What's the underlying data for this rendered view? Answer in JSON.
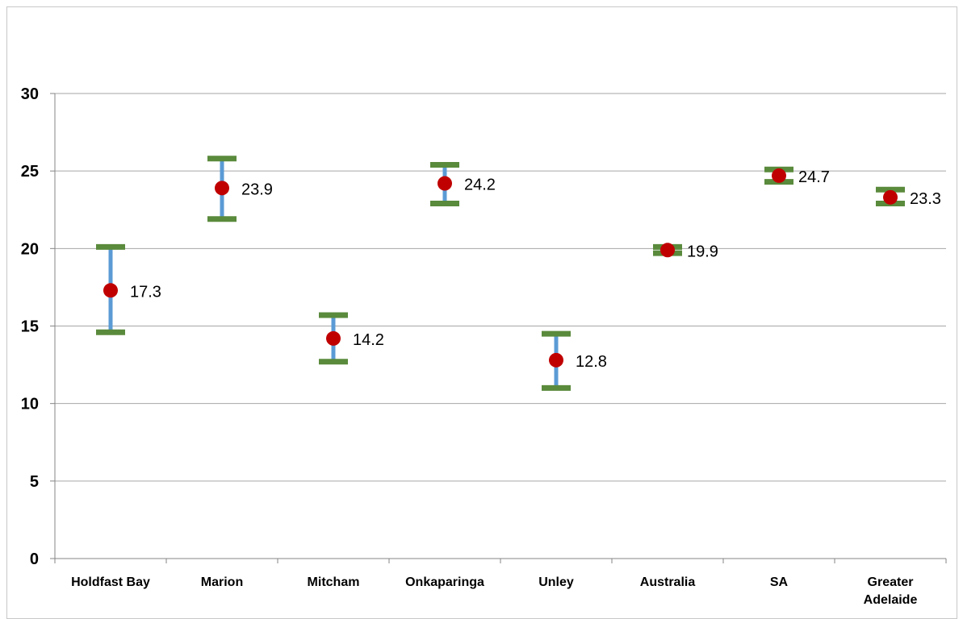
{
  "chart_data": {
    "type": "scatter",
    "categories": [
      "Holdfast Bay",
      "Marion",
      "Mitcham",
      "Onkaparinga",
      "Unley",
      "Australia",
      "SA",
      "Greater Adelaide"
    ],
    "category_lines": [
      [
        "Holdfast Bay"
      ],
      [
        "Marion"
      ],
      [
        "Mitcham"
      ],
      [
        "Onkaparinga"
      ],
      [
        "Unley"
      ],
      [
        "Australia"
      ],
      [
        "SA"
      ],
      [
        "Greater",
        "Adelaide"
      ]
    ],
    "values": [
      17.3,
      23.9,
      14.2,
      24.2,
      12.8,
      19.9,
      24.7,
      23.3
    ],
    "value_labels": [
      "17.3",
      "23.9",
      "14.2",
      "24.2",
      "12.8",
      "19.9",
      "24.7",
      "23.3"
    ],
    "ci_low": [
      14.6,
      21.9,
      12.7,
      22.9,
      11.0,
      19.7,
      24.3,
      22.9
    ],
    "ci_high": [
      20.1,
      25.8,
      15.7,
      25.4,
      14.5,
      20.1,
      25.1,
      23.8
    ],
    "ylim": [
      0,
      30
    ],
    "yticks": [
      0,
      5,
      10,
      15,
      20,
      25,
      30
    ],
    "ytick_labels": [
      "0",
      "5",
      "10",
      "15",
      "20",
      "25",
      "30"
    ],
    "grid": true,
    "title": "",
    "xlabel": "",
    "ylabel": "",
    "colors": {
      "marker": "#c00000",
      "error_bar": "#5b9bd5",
      "cap": "#5a8a3c",
      "grid": "#a6a6a6",
      "axis": "#868686"
    }
  }
}
